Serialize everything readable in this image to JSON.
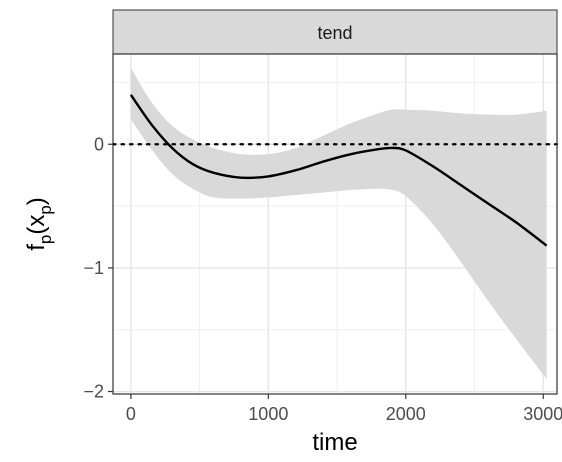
{
  "chart_data": {
    "type": "line",
    "facet_label": "tend",
    "xlabel": "time",
    "ylabel": "f_p(x_p)",
    "xlim": [
      -130,
      3100
    ],
    "ylim": [
      -2.02,
      0.73
    ],
    "x_ticks": [
      0,
      1000,
      2000,
      3000
    ],
    "x_tick_labels": [
      "0",
      "1000",
      "2000",
      "3000"
    ],
    "y_ticks": [
      -2,
      -1,
      0
    ],
    "y_tick_labels": [
      "−2",
      "−1",
      "0"
    ],
    "reference_line": {
      "y": 0,
      "style": "dotted"
    },
    "grid": true,
    "series": [
      {
        "x": [
          0,
          150,
          300,
          450,
          600,
          800,
          1000,
          1200,
          1400,
          1600,
          1800,
          1900,
          2000,
          2200,
          2400,
          2600,
          2800,
          3025
        ],
        "y": [
          0.4,
          0.16,
          -0.03,
          -0.16,
          -0.23,
          -0.27,
          -0.26,
          -0.21,
          -0.14,
          -0.08,
          -0.04,
          -0.03,
          -0.05,
          -0.18,
          -0.33,
          -0.48,
          -0.63,
          -0.82
        ],
        "lower": [
          0.2,
          -0.04,
          -0.24,
          -0.36,
          -0.43,
          -0.44,
          -0.43,
          -0.41,
          -0.39,
          -0.37,
          -0.36,
          -0.37,
          -0.42,
          -0.65,
          -0.95,
          -1.27,
          -1.57,
          -1.9
        ],
        "upper": [
          0.62,
          0.34,
          0.15,
          0.04,
          -0.03,
          -0.08,
          -0.08,
          -0.03,
          0.07,
          0.17,
          0.25,
          0.28,
          0.28,
          0.27,
          0.25,
          0.24,
          0.24,
          0.27
        ]
      }
    ],
    "colors": {
      "line": "#000000",
      "ribbon": "#d9d9d9",
      "strip": "#d9d9d9",
      "border": "#333333"
    }
  }
}
